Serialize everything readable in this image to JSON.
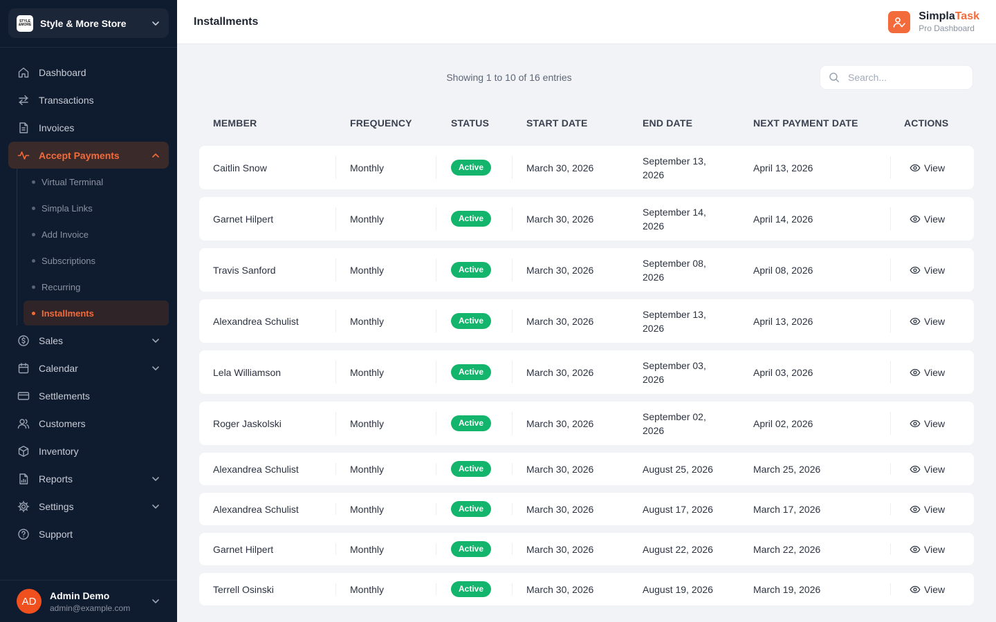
{
  "store": {
    "logo_text": "STYLE & MORE",
    "name": "Style & More Store"
  },
  "nav": [
    {
      "label": "Dashboard",
      "icon": "home-icon"
    },
    {
      "label": "Transactions",
      "icon": "arrows-icon"
    },
    {
      "label": "Invoices",
      "icon": "document-icon"
    },
    {
      "label": "Accept Payments",
      "icon": "pulse-icon",
      "active": true,
      "expanded": true
    }
  ],
  "subnav": [
    {
      "label": "Virtual Terminal"
    },
    {
      "label": "Simpla Links"
    },
    {
      "label": "Add Invoice"
    },
    {
      "label": "Subscriptions"
    },
    {
      "label": "Recurring"
    },
    {
      "label": "Installments",
      "active": true
    }
  ],
  "nav2": [
    {
      "label": "Sales",
      "icon": "dollar-icon",
      "has_children": true
    },
    {
      "label": "Calendar",
      "icon": "calendar-icon",
      "has_children": true
    },
    {
      "label": "Settlements",
      "icon": "card-icon"
    },
    {
      "label": "Customers",
      "icon": "users-icon"
    },
    {
      "label": "Inventory",
      "icon": "box-icon"
    },
    {
      "label": "Reports",
      "icon": "report-icon",
      "has_children": true
    },
    {
      "label": "Settings",
      "icon": "gear-icon",
      "has_children": true
    },
    {
      "label": "Support",
      "icon": "help-icon"
    }
  ],
  "user": {
    "initials": "AD",
    "name": "Admin Demo",
    "email": "admin@example.com"
  },
  "header": {
    "title": "Installments"
  },
  "brand": {
    "name_part1": "Simpla",
    "name_part2": "Task",
    "subtitle": "Pro Dashboard",
    "accent": "#f36b3b"
  },
  "table_info": "Showing 1 to 10 of 16 entries",
  "search": {
    "placeholder": "Search...",
    "value": ""
  },
  "columns": [
    "MEMBER",
    "FREQUENCY",
    "STATUS",
    "START DATE",
    "END DATE",
    "NEXT PAYMENT DATE",
    "ACTIONS"
  ],
  "rows": [
    {
      "member": "Caitlin Snow",
      "frequency": "Monthly",
      "status": "Active",
      "start": "March 30, 2026",
      "end": "September 13, 2026",
      "next": "April 13, 2026",
      "action": "View"
    },
    {
      "member": "Garnet Hilpert",
      "frequency": "Monthly",
      "status": "Active",
      "start": "March 30, 2026",
      "end": "September 14, 2026",
      "next": "April 14, 2026",
      "action": "View"
    },
    {
      "member": "Travis Sanford",
      "frequency": "Monthly",
      "status": "Active",
      "start": "March 30, 2026",
      "end": "September 08, 2026",
      "next": "April 08, 2026",
      "action": "View"
    },
    {
      "member": "Alexandrea Schulist",
      "frequency": "Monthly",
      "status": "Active",
      "start": "March 30, 2026",
      "end": "September 13, 2026",
      "next": "April 13, 2026",
      "action": "View"
    },
    {
      "member": "Lela Williamson",
      "frequency": "Monthly",
      "status": "Active",
      "start": "March 30, 2026",
      "end": "September 03, 2026",
      "next": "April 03, 2026",
      "action": "View"
    },
    {
      "member": "Roger Jaskolski",
      "frequency": "Monthly",
      "status": "Active",
      "start": "March 30, 2026",
      "end": "September 02, 2026",
      "next": "April 02, 2026",
      "action": "View"
    },
    {
      "member": "Alexandrea Schulist",
      "frequency": "Monthly",
      "status": "Active",
      "start": "March 30, 2026",
      "end": "August 25, 2026",
      "next": "March 25, 2026",
      "action": "View"
    },
    {
      "member": "Alexandrea Schulist",
      "frequency": "Monthly",
      "status": "Active",
      "start": "March 30, 2026",
      "end": "August 17, 2026",
      "next": "March 17, 2026",
      "action": "View"
    },
    {
      "member": "Garnet Hilpert",
      "frequency": "Monthly",
      "status": "Active",
      "start": "March 30, 2026",
      "end": "August 22, 2026",
      "next": "March 22, 2026",
      "action": "View"
    },
    {
      "member": "Terrell Osinski",
      "frequency": "Monthly",
      "status": "Active",
      "start": "March 30, 2026",
      "end": "August 19, 2026",
      "next": "March 19, 2026",
      "action": "View"
    }
  ],
  "colors": {
    "sidebar_bg": "#0f1b2e",
    "accent": "#f36b3b",
    "status_active": "#12b56b",
    "page_bg": "#f1f3f6"
  }
}
